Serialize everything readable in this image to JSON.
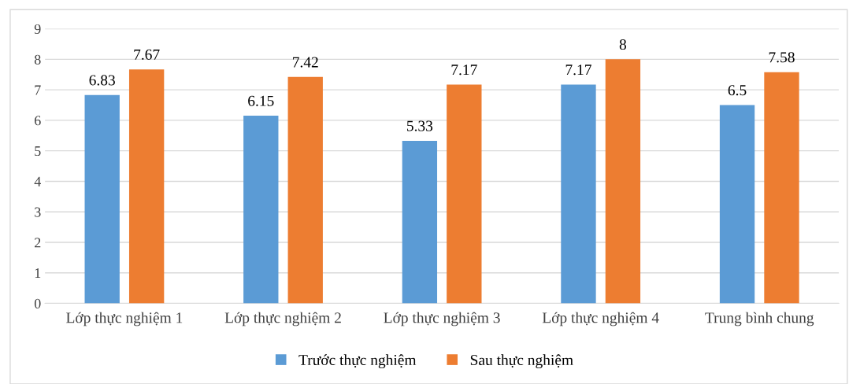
{
  "chart_data": {
    "type": "bar",
    "categories": [
      "Lớp thực nghiệm 1",
      "Lớp thực nghiệm 2",
      "Lớp thực nghiệm 3",
      "Lớp thực nghiệm 4",
      "Trung bình chung"
    ],
    "series": [
      {
        "name": "Trước thực nghiệm",
        "color": "#5b9bd5",
        "values": [
          6.83,
          6.15,
          5.33,
          7.17,
          6.5
        ]
      },
      {
        "name": "Sau thực nghiệm",
        "color": "#ed7d31",
        "values": [
          7.67,
          7.42,
          7.17,
          8,
          7.58
        ]
      }
    ],
    "ylim": [
      0,
      9
    ],
    "yticks": [
      0,
      1,
      2,
      3,
      4,
      5,
      6,
      7,
      8,
      9
    ],
    "grid": "y",
    "legend": "bottom",
    "data_labels": true
  }
}
